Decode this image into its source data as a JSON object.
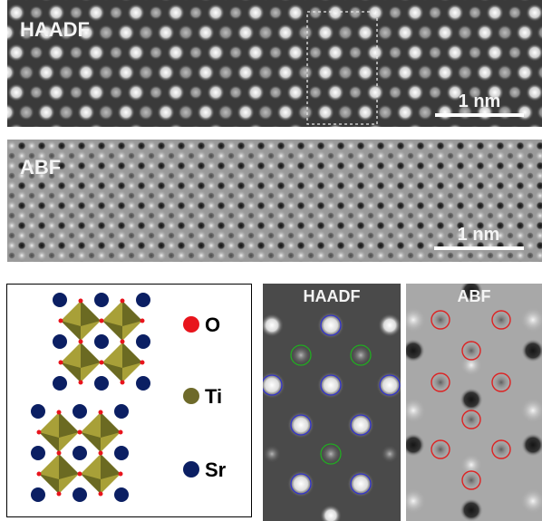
{
  "panels": {
    "haadf_wide": {
      "label": "HAADF",
      "scale_bar": "1 nm"
    },
    "abf_wide": {
      "label": "ABF",
      "scale_bar": "1 nm"
    },
    "haadf_zoom": {
      "label": "HAADF"
    },
    "abf_zoom": {
      "label": "ABF"
    }
  },
  "legend": {
    "items": [
      {
        "label": "O",
        "color": "#e8141c"
      },
      {
        "label": "Ti",
        "color": "#6e6a2a"
      },
      {
        "label": "Sr",
        "color": "#0b1f63"
      }
    ]
  },
  "colors": {
    "octahedron_light": "#a8a038",
    "octahedron_dark": "#6b6a22",
    "circle_blue": "#3333cc",
    "circle_green": "#22aa22",
    "circle_red": "#dd2222"
  }
}
